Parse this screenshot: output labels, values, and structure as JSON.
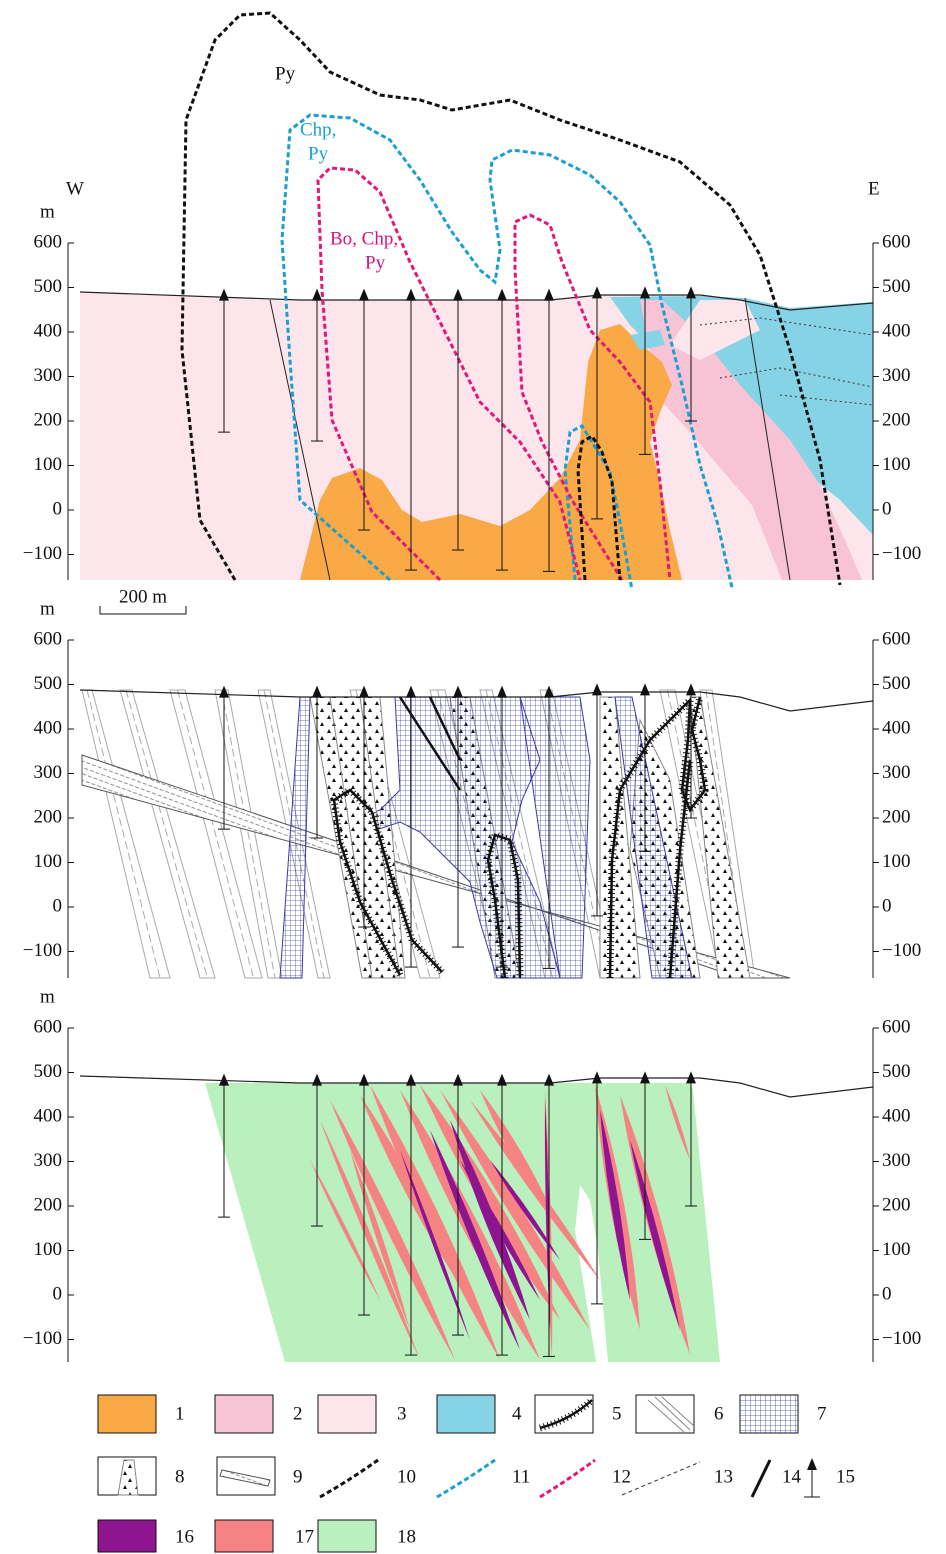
{
  "labels": {
    "west": "W",
    "east": "E"
  },
  "panels": [
    {
      "unit": "m",
      "ticks": [
        "600",
        "500",
        "400",
        "300",
        "200",
        "100",
        "0",
        "−100"
      ]
    },
    {
      "unit": "m",
      "ticks": [
        "600",
        "500",
        "400",
        "300",
        "200",
        "100",
        "0",
        "−100"
      ]
    },
    {
      "unit": "m",
      "ticks": [
        "600",
        "500",
        "400",
        "300",
        "200",
        "100",
        "0",
        "−100"
      ]
    }
  ],
  "annotations": {
    "py": "Py",
    "chp": [
      "Chp,",
      "Py"
    ],
    "bo": [
      "Bo, Chp,",
      "Py"
    ]
  },
  "scale_bar": "200 m",
  "legend": [
    "1",
    "2",
    "3",
    "4",
    "5",
    "6",
    "7",
    "8",
    "9",
    "10",
    "11",
    "12",
    "13",
    "14",
    "15",
    "16",
    "17",
    "18"
  ]
}
